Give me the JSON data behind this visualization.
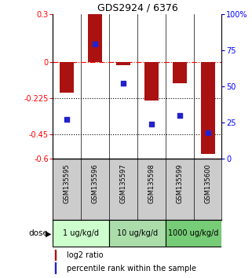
{
  "title": "GDS2924 / 6376",
  "samples": [
    "GSM135595",
    "GSM135596",
    "GSM135597",
    "GSM135598",
    "GSM135599",
    "GSM135600"
  ],
  "log2_ratios": [
    -0.19,
    0.3,
    -0.02,
    -0.24,
    -0.13,
    -0.57
  ],
  "percentile_ranks": [
    27,
    79,
    52,
    24,
    30,
    18
  ],
  "bar_color": "#aa1111",
  "dot_color": "#2222cc",
  "ylim_left": [
    -0.6,
    0.3
  ],
  "ylim_right": [
    0,
    100
  ],
  "yticks_left": [
    0.3,
    0,
    -0.225,
    -0.45,
    -0.6
  ],
  "ytick_labels_left": [
    "0.3",
    "0",
    "-0.225",
    "-0.45",
    "-0.6"
  ],
  "yticks_right": [
    100,
    75,
    50,
    25,
    0
  ],
  "ytick_labels_right": [
    "100%",
    "75",
    "50",
    "25",
    "0"
  ],
  "hline_dashed": 0,
  "hlines_dotted": [
    -0.225,
    -0.45
  ],
  "dose_groups": [
    {
      "label": "1 ug/kg/d",
      "indices": [
        0,
        1
      ],
      "color": "#ccffcc"
    },
    {
      "label": "10 ug/kg/d",
      "indices": [
        2,
        3
      ],
      "color": "#aaddaa"
    },
    {
      "label": "1000 ug/kg/d",
      "indices": [
        4,
        5
      ],
      "color": "#77cc77"
    }
  ],
  "legend_bar_label": "log2 ratio",
  "legend_dot_label": "percentile rank within the sample",
  "dose_label": "dose",
  "bar_width": 0.5
}
